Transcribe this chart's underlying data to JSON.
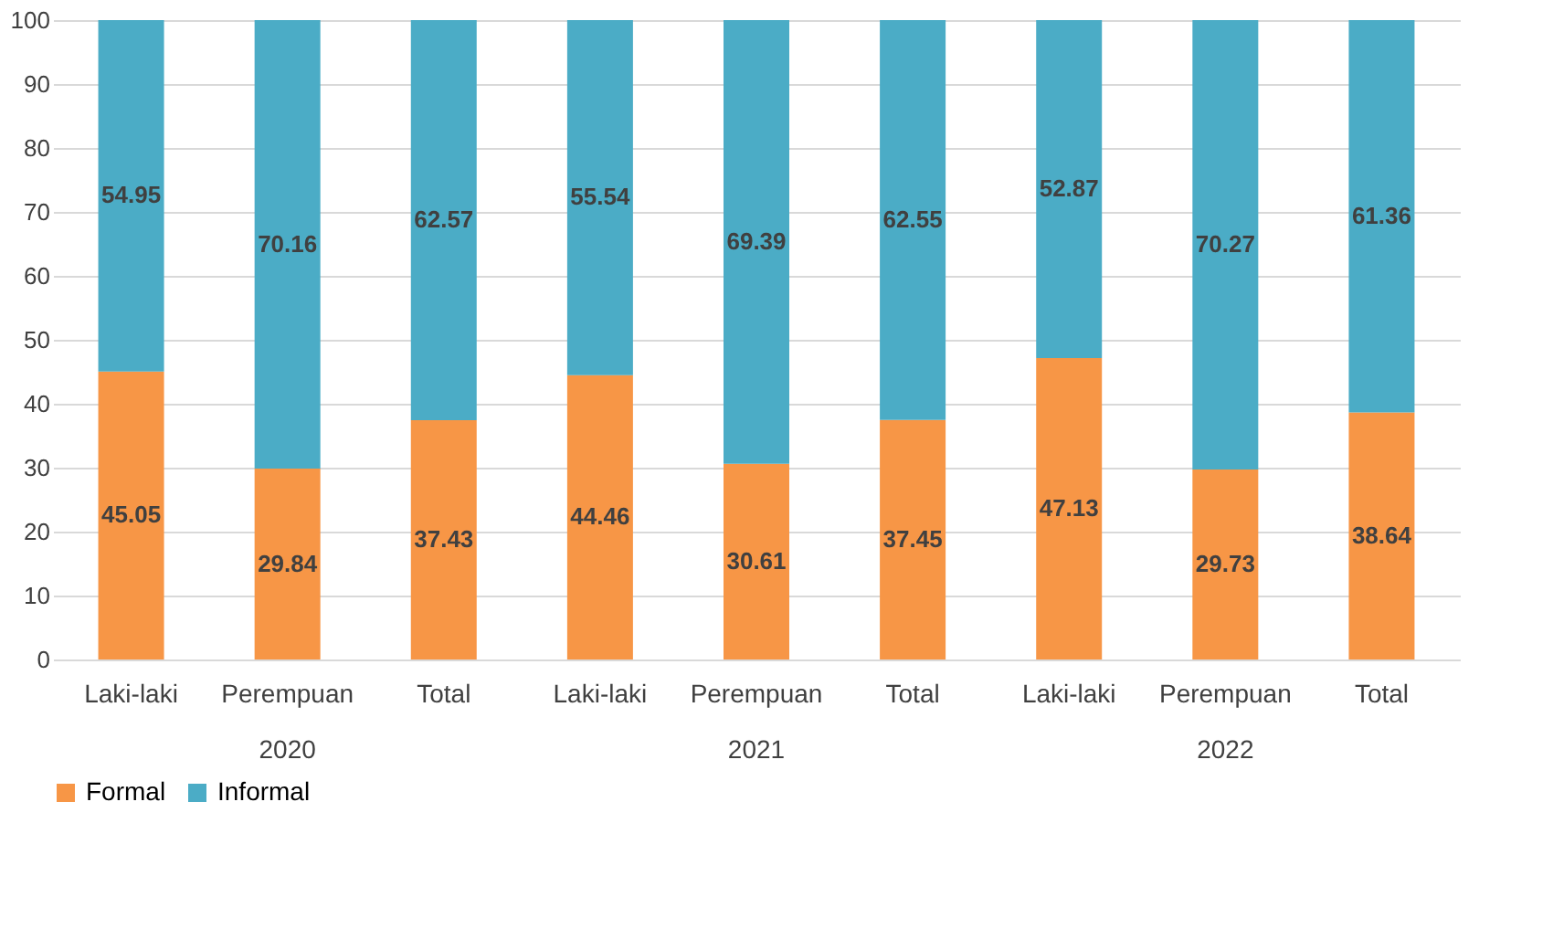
{
  "chart_data": {
    "type": "bar",
    "stacked": true,
    "categories": [
      "Laki-laki",
      "Perempuan",
      "Total",
      "Laki-laki",
      "Perempuan",
      "Total",
      "Laki-laki",
      "Perempuan",
      "Total"
    ],
    "series": [
      {
        "name": "Formal",
        "color": "#f79646",
        "values": [
          45.05,
          29.84,
          37.43,
          44.46,
          30.61,
          37.45,
          47.13,
          29.73,
          38.64
        ]
      },
      {
        "name": "Informal",
        "color": "#4bacc6",
        "values": [
          54.95,
          70.16,
          62.57,
          55.54,
          69.39,
          62.55,
          52.87,
          70.27,
          61.36
        ]
      }
    ],
    "annotations": [
      "2020",
      "2021",
      "2022"
    ],
    "ylim": [
      0,
      100
    ],
    "yticks": [
      0,
      10,
      20,
      30,
      40,
      50,
      60,
      70,
      80,
      90,
      100
    ],
    "grid": "y",
    "legend": "bottom",
    "data_labels": true
  }
}
